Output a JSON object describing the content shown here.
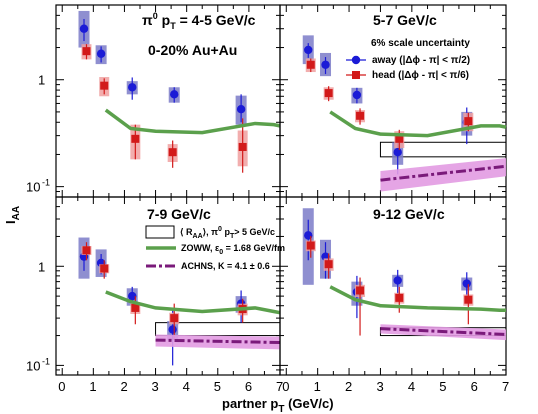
{
  "figure": {
    "ylabel_main": "I",
    "ylabel_sub": "AA",
    "xlabel_main": "partner p",
    "xlabel_sub": "T",
    "xlabel_tail": " (GeV/c)",
    "header_pi": "π",
    "header_zero": "0",
    "header_p": " p",
    "header_T": "T",
    "header_rest": " = 4-5 GeV/c",
    "centrality": "0-20% Au+Au",
    "scale_uncertainty": "6% scale uncertainty",
    "legend_away": "away (|Δϕ - π| < π/2)",
    "legend_head": "head (|Δϕ - π| < π/6)",
    "legend_raa_a": "⟨ R",
    "legend_raa_b": "AA",
    "legend_raa_c": "⟩, π",
    "legend_raa_d": "0",
    "legend_raa_e": " p",
    "legend_raa_f": "T",
    "legend_raa_g": "> 5 GeV/c",
    "legend_zoww_a": "ZOWW, ε",
    "legend_zoww_b": "0",
    "legend_zoww_c": " = 1.68 GeV/fm",
    "legend_achns": "ACHNS, K = 4.1 ± 0.6",
    "y_tick_1": "1",
    "y_tick_01": "10",
    "y_tick_01_exp": "-1",
    "colors": {
      "away": "#1b1bd6",
      "away_band": "#7b7bc8",
      "head": "#d21a1a",
      "head_band": "#f0a0a0",
      "zoww": "#5ba04c",
      "achns": "#7a1a7a",
      "achns_band": "#e29be2"
    }
  },
  "chart_data": [
    {
      "type": "scatter",
      "panel": "4-5 GeV/c",
      "title": "π0 pT = 4-5 GeV/c",
      "xlim": [
        -0.2,
        7.0
      ],
      "ylim": [
        0.08,
        5.0
      ],
      "yscale": "log",
      "series": [
        {
          "name": "away (|Δϕ - π| < π/2)",
          "x": [
            0.7,
            1.25,
            2.25,
            3.6,
            5.75
          ],
          "y": [
            3.0,
            1.75,
            0.85,
            0.73,
            0.53
          ],
          "err_lo": [
            0.7,
            0.3,
            0.2,
            0.12,
            0.13
          ],
          "err_hi": [
            0.7,
            0.3,
            0.2,
            0.12,
            0.2
          ],
          "sys_lo": [
            1.0,
            0.35,
            0.12,
            0.12,
            0.15
          ],
          "sys_hi": [
            1.4,
            0.35,
            0.12,
            0.12,
            0.18
          ]
        },
        {
          "name": "head (|Δϕ - π| < π/6)",
          "x": [
            0.78,
            1.35,
            2.35,
            3.55,
            5.8
          ],
          "y": [
            1.85,
            0.88,
            0.28,
            0.21,
            0.235
          ],
          "err_lo": [
            0.3,
            0.15,
            0.1,
            0.06,
            0.1
          ],
          "err_hi": [
            0.3,
            0.15,
            0.1,
            0.06,
            0.2
          ],
          "sys_lo": [
            0.3,
            0.18,
            0.1,
            0.04,
            0.08
          ],
          "sys_hi": [
            0.3,
            0.18,
            0.1,
            0.04,
            0.1
          ]
        },
        {
          "name": "ZOWW, ε0 = 1.68 GeV/fm",
          "x": [
            1.4,
            2.2,
            3.0,
            4.5,
            6.2,
            6.8,
            7.0
          ],
          "y": [
            0.52,
            0.35,
            0.33,
            0.32,
            0.39,
            0.38,
            0.37
          ]
        }
      ]
    },
    {
      "type": "scatter",
      "panel": "5-7 GeV/c",
      "title": "5-7 GeV/c",
      "xlim": [
        -0.2,
        7.0
      ],
      "ylim": [
        0.08,
        5.0
      ],
      "yscale": "log",
      "series": [
        {
          "name": "away (|Δϕ - π| < π/2)",
          "x": [
            0.7,
            1.25,
            2.25,
            3.55,
            5.75
          ],
          "y": [
            1.9,
            1.38,
            0.72,
            0.21,
            0.4
          ],
          "err_lo": [
            0.3,
            0.25,
            0.12,
            0.08,
            0.15
          ],
          "err_hi": [
            0.3,
            0.25,
            0.12,
            0.1,
            0.15
          ],
          "sys_lo": [
            0.5,
            0.3,
            0.12,
            0.05,
            0.1
          ],
          "sys_hi": [
            0.7,
            0.4,
            0.12,
            0.05,
            0.1
          ]
        },
        {
          "name": "head (|Δϕ - π| < π/6)",
          "x": [
            0.78,
            1.35,
            2.35,
            3.6,
            5.8
          ],
          "y": [
            1.38,
            0.75,
            0.46,
            0.28,
            0.41
          ],
          "err_lo": [
            0.2,
            0.12,
            0.08,
            0.06,
            0.08
          ],
          "err_hi": [
            0.2,
            0.12,
            0.08,
            0.06,
            0.08
          ],
          "sys_lo": [
            0.2,
            0.1,
            0.06,
            0.05,
            0.08
          ],
          "sys_hi": [
            0.2,
            0.1,
            0.06,
            0.05,
            0.08
          ]
        },
        {
          "name": "ZOWW, ε0 = 1.68 GeV/fm",
          "x": [
            1.4,
            2.2,
            3.0,
            4.5,
            6.2,
            6.8,
            7.0
          ],
          "y": [
            0.5,
            0.35,
            0.31,
            0.3,
            0.37,
            0.37,
            0.36
          ]
        },
        {
          "name": "ACHNS, K = 4.1 ± 0.6",
          "x": [
            3.0,
            7.0
          ],
          "y": [
            0.115,
            0.155
          ],
          "band": [
            0.025,
            0.03
          ]
        }
      ],
      "raa_box": {
        "xlim": [
          3.0,
          7.0
        ],
        "ylim": [
          0.19,
          0.26
        ]
      }
    },
    {
      "type": "scatter",
      "panel": "7-9 GeV/c",
      "title": "7-9 GeV/c",
      "xlim": [
        -0.2,
        7.0
      ],
      "ylim": [
        0.08,
        5.0
      ],
      "yscale": "log",
      "series": [
        {
          "name": "away (|Δϕ - π| < π/2)",
          "x": [
            0.7,
            1.25,
            2.25,
            3.55,
            5.75
          ],
          "y": [
            1.25,
            1.08,
            0.5,
            0.23,
            0.42
          ],
          "err_lo": [
            0.35,
            0.25,
            0.12,
            0.13,
            0.15
          ],
          "err_hi": [
            0.35,
            0.25,
            0.12,
            0.13,
            0.15
          ],
          "sys_lo": [
            0.5,
            0.3,
            0.1,
            0.05,
            0.08
          ],
          "sys_hi": [
            0.7,
            0.4,
            0.1,
            0.05,
            0.08
          ]
        },
        {
          "name": "head (|Δϕ - π| < π/6)",
          "x": [
            0.78,
            1.35,
            2.35,
            3.6,
            5.8
          ],
          "y": [
            1.45,
            0.95,
            0.38,
            0.3,
            0.37
          ],
          "err_lo": [
            0.3,
            0.2,
            0.12,
            0.12,
            0.1
          ],
          "err_hi": [
            0.3,
            0.2,
            0.12,
            0.12,
            0.1
          ],
          "sys_lo": [
            0.15,
            0.1,
            0.05,
            0.04,
            0.05
          ],
          "sys_hi": [
            0.15,
            0.1,
            0.05,
            0.04,
            0.05
          ]
        },
        {
          "name": "ZOWW, ε0 = 1.68 GeV/fm",
          "x": [
            1.4,
            2.2,
            3.0,
            4.5,
            6.2,
            6.8,
            7.0
          ],
          "y": [
            0.55,
            0.44,
            0.38,
            0.35,
            0.38,
            0.35,
            0.34
          ]
        },
        {
          "name": "ACHNS, K = 4.1 ± 0.6",
          "x": [
            3.0,
            7.0
          ],
          "y": [
            0.18,
            0.17
          ],
          "band": [
            0.025,
            0.025
          ]
        }
      ],
      "raa_box": {
        "xlim": [
          3.0,
          7.0
        ],
        "ylim": [
          0.2,
          0.27
        ]
      }
    },
    {
      "type": "scatter",
      "panel": "9-12 GeV/c",
      "title": "9-12 GeV/c",
      "xlim": [
        -0.2,
        7.0
      ],
      "ylim": [
        0.08,
        5.0
      ],
      "yscale": "log",
      "series": [
        {
          "name": "away (|Δϕ - π| < π/2)",
          "x": [
            0.7,
            1.25,
            2.25,
            3.55,
            5.75
          ],
          "y": [
            2.05,
            1.25,
            0.55,
            0.72,
            0.67
          ],
          "err_lo": [
            0.9,
            0.5,
            0.25,
            0.2,
            0.2
          ],
          "err_hi": [
            0.9,
            0.5,
            0.25,
            0.2,
            0.2
          ],
          "sys_lo": [
            1.4,
            0.5,
            0.15,
            0.1,
            0.1
          ],
          "sys_hi": [
            1.8,
            0.6,
            0.15,
            0.1,
            0.1
          ]
        },
        {
          "name": "head (|Δϕ - π| < π/6)",
          "x": [
            0.78,
            1.35,
            2.35,
            3.6,
            5.8
          ],
          "y": [
            1.62,
            1.05,
            0.57,
            0.48,
            0.46
          ],
          "err_lo": [
            0.4,
            0.3,
            0.37,
            0.14,
            0.2
          ],
          "err_hi": [
            0.4,
            0.3,
            0.2,
            0.14,
            0.2
          ],
          "sys_lo": [
            0.2,
            0.15,
            0.08,
            0.06,
            0.06
          ],
          "sys_hi": [
            0.2,
            0.15,
            0.08,
            0.06,
            0.06
          ]
        },
        {
          "name": "ZOWW, ε0 = 1.68 GeV/fm",
          "x": [
            1.4,
            2.2,
            3.0,
            4.5,
            6.2,
            6.8,
            7.0
          ],
          "y": [
            0.62,
            0.46,
            0.4,
            0.38,
            0.37,
            0.36,
            0.36
          ]
        },
        {
          "name": "ACHNS, K = 4.1 ± 0.6",
          "x": [
            3.0,
            7.0
          ],
          "y": [
            0.235,
            0.205
          ],
          "band": [
            0.025,
            0.025
          ]
        }
      ],
      "raa_box": {
        "xlim": [
          3.0,
          7.0
        ],
        "ylim": [
          0.2,
          0.24
        ]
      }
    }
  ],
  "x_ticks": [
    "0",
    "1",
    "2",
    "3",
    "4",
    "5",
    "6",
    "7"
  ]
}
